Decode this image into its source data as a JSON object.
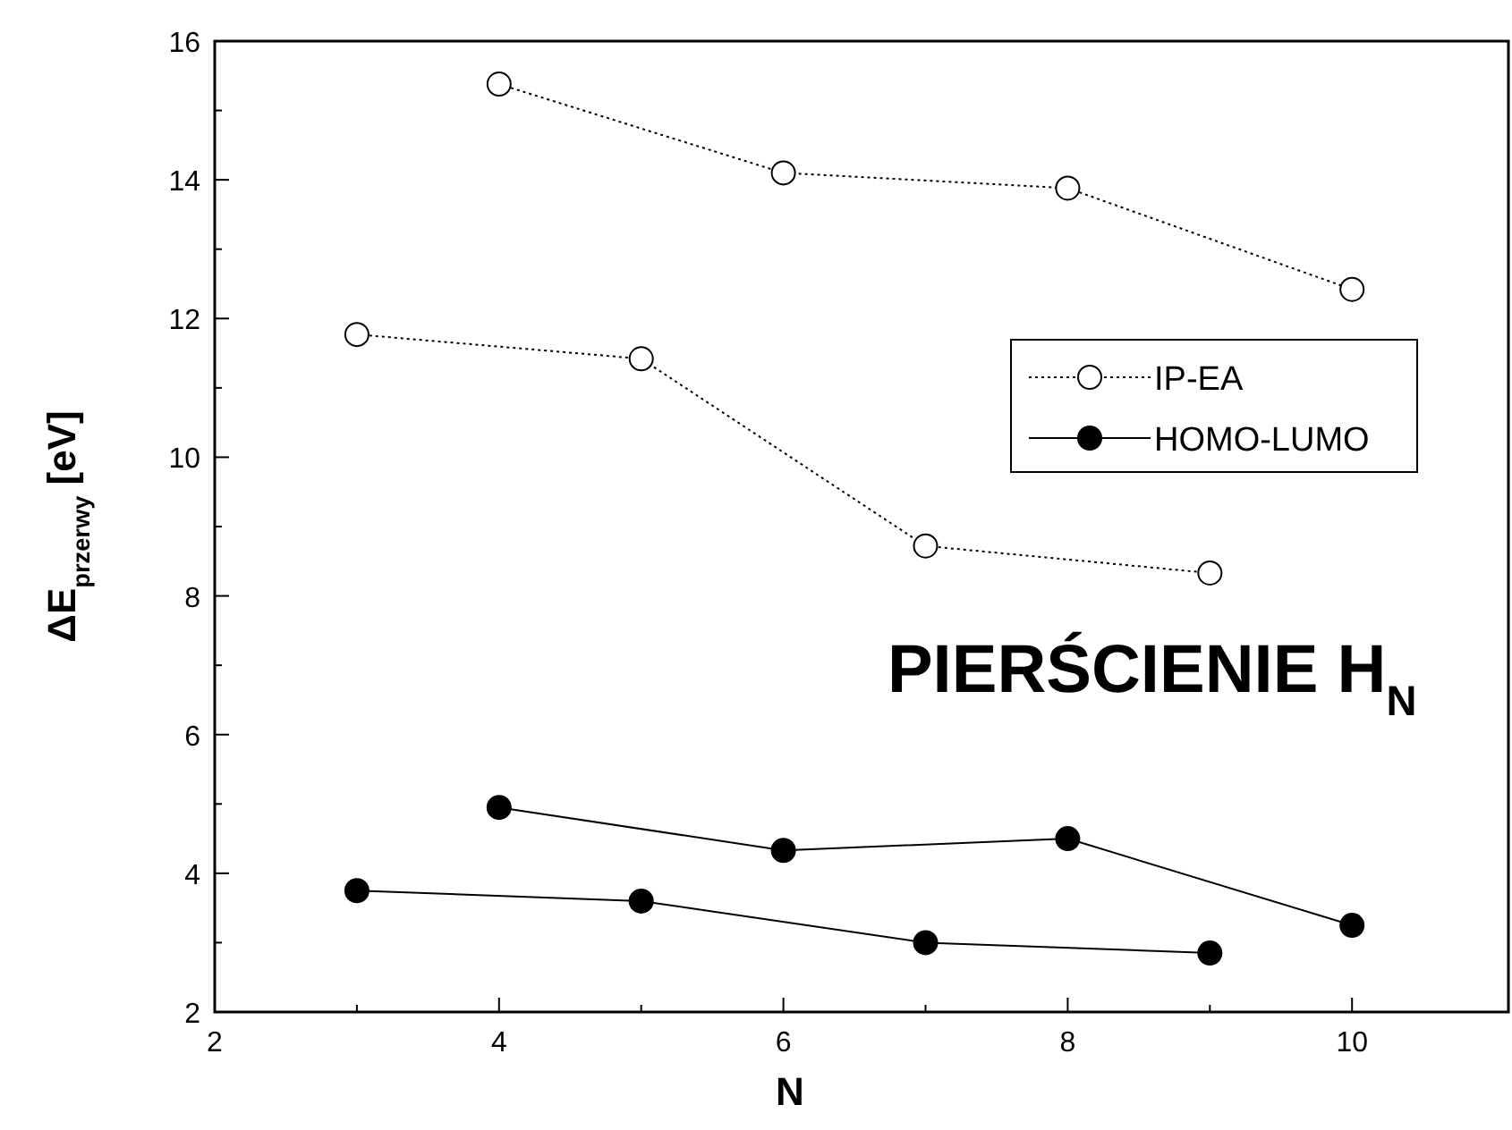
{
  "chart_data": {
    "type": "line",
    "xlabel": "N",
    "ylabel": "ΔE$_{przerwy}$ [eV]",
    "xlim": [
      2,
      11.1
    ],
    "ylim": [
      2,
      16
    ],
    "xticks": [
      2,
      4,
      6,
      8,
      10
    ],
    "yticks": [
      2,
      4,
      6,
      8,
      10,
      12,
      14,
      16
    ],
    "grid": false,
    "legend": "right",
    "marker": "circle",
    "annotations": [
      "PIERŚCIENIE H$_{N}$"
    ],
    "series": [
      {
        "name": "IP-EA",
        "color": "#000000",
        "line_style": "dotted",
        "x": [
          4,
          6,
          8,
          10
        ],
        "values": [
          15.38,
          14.1,
          13.88,
          12.42
        ]
      },
      {
        "color": "#000000",
        "line_style": "dotted",
        "x": [
          3,
          5,
          7,
          9
        ],
        "values": [
          11.77,
          11.42,
          8.72,
          8.33
        ]
      },
      {
        "name": "HOMO-LUMO",
        "color": "#000000",
        "line_style": "solid",
        "x": [
          4,
          6,
          8,
          10
        ],
        "values": [
          4.95,
          4.33,
          4.5,
          3.25
        ]
      },
      {
        "color": "#000000",
        "line_style": "solid",
        "x": [
          3,
          5,
          7,
          9
        ],
        "values": [
          3.75,
          3.6,
          3.0,
          2.85
        ]
      }
    ]
  }
}
